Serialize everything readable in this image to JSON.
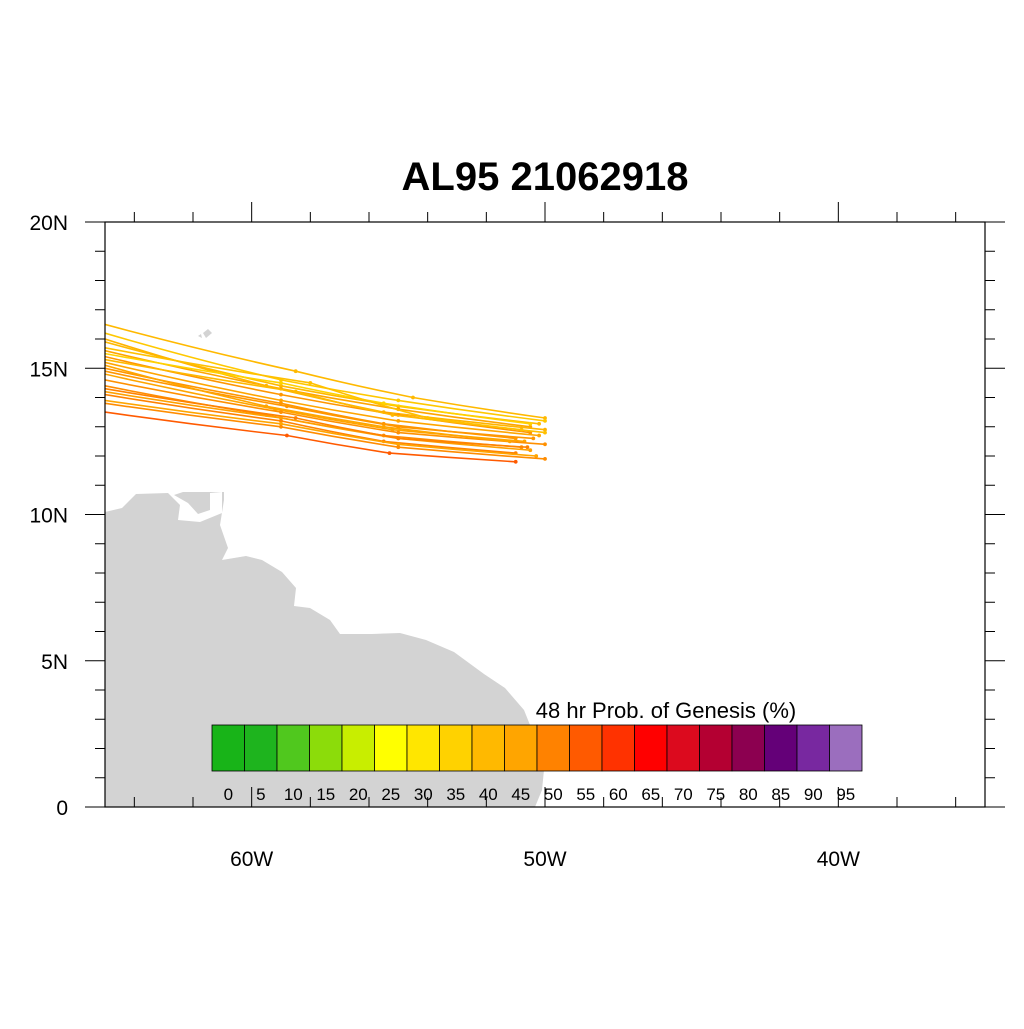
{
  "title": "AL95 21062918",
  "chart_data": {
    "type": "map-tracks",
    "title": "AL95 21062918",
    "lon_range": [
      -65,
      -35
    ],
    "lat_range": [
      0,
      20
    ],
    "x_ticks": [
      {
        "value": -60,
        "label": "60W"
      },
      {
        "value": -50,
        "label": "50W"
      },
      {
        "value": -40,
        "label": "40W"
      }
    ],
    "y_ticks": [
      {
        "value": 0,
        "label": "0"
      },
      {
        "value": 5,
        "label": "5N"
      },
      {
        "value": 10,
        "label": "10N"
      },
      {
        "value": 15,
        "label": "15N"
      },
      {
        "value": 20,
        "label": "20N"
      }
    ],
    "land_color": "#d3d3d3",
    "colorbar": {
      "title": "48 hr Prob. of Genesis (%)",
      "bins": [
        {
          "label": "0",
          "color": "#18b418"
        },
        {
          "label": "5",
          "color": "#1eb41e"
        },
        {
          "label": "10",
          "color": "#50c81e"
        },
        {
          "label": "15",
          "color": "#8cdc0a"
        },
        {
          "label": "20",
          "color": "#c8ee00"
        },
        {
          "label": "25",
          "color": "#ffff00"
        },
        {
          "label": "30",
          "color": "#ffe600"
        },
        {
          "label": "35",
          "color": "#ffd200"
        },
        {
          "label": "40",
          "color": "#ffb900"
        },
        {
          "label": "45",
          "color": "#ffa500"
        },
        {
          "label": "50",
          "color": "#ff8200"
        },
        {
          "label": "55",
          "color": "#ff5a00"
        },
        {
          "label": "60",
          "color": "#ff3200"
        },
        {
          "label": "65",
          "color": "#ff0000"
        },
        {
          "label": "70",
          "color": "#dc0a1e"
        },
        {
          "label": "75",
          "color": "#b40032"
        },
        {
          "label": "80",
          "color": "#8c0050"
        },
        {
          "label": "85",
          "color": "#640078"
        },
        {
          "label": "90",
          "color": "#7828a0"
        },
        {
          "label": "95",
          "color": "#9b6ebe"
        }
      ]
    },
    "tracks": [
      {
        "color": "#ffb900",
        "points": [
          [
            -50.0,
            13.3
          ],
          [
            -54.5,
            14.0
          ],
          [
            -58.5,
            14.9
          ],
          [
            -65.0,
            16.5
          ]
        ]
      },
      {
        "color": "#ffc800",
        "points": [
          [
            -50.0,
            13.2
          ],
          [
            -55.0,
            13.9
          ],
          [
            -59.0,
            14.6
          ],
          [
            -65.0,
            16.2
          ]
        ]
      },
      {
        "color": "#ffb900",
        "points": [
          [
            -50.2,
            13.1
          ],
          [
            -55.0,
            13.7
          ],
          [
            -59.0,
            14.4
          ],
          [
            -65.0,
            15.9
          ]
        ]
      },
      {
        "color": "#ffa500",
        "points": [
          [
            -50.5,
            13.0
          ],
          [
            -55.0,
            13.6
          ],
          [
            -59.0,
            14.3
          ],
          [
            -65.0,
            15.6
          ]
        ]
      },
      {
        "color": "#ffb400",
        "points": [
          [
            -50.0,
            12.9
          ],
          [
            -55.5,
            13.5
          ],
          [
            -59.5,
            14.4
          ],
          [
            -65.0,
            16.0
          ]
        ]
      },
      {
        "color": "#ff9600",
        "points": [
          [
            -50.5,
            12.8
          ],
          [
            -55.0,
            13.4
          ],
          [
            -59.0,
            14.1
          ],
          [
            -65.0,
            15.4
          ]
        ]
      },
      {
        "color": "#ffa500",
        "points": [
          [
            -50.2,
            12.7
          ],
          [
            -55.0,
            13.2
          ],
          [
            -59.0,
            13.9
          ],
          [
            -65.0,
            15.2
          ]
        ]
      },
      {
        "color": "#ff9600",
        "points": [
          [
            -51.0,
            12.6
          ],
          [
            -55.5,
            13.1
          ],
          [
            -59.0,
            13.8
          ],
          [
            -65.0,
            15.0
          ]
        ]
      },
      {
        "color": "#ffa500",
        "points": [
          [
            -50.7,
            12.5
          ],
          [
            -55.2,
            12.9
          ],
          [
            -59.2,
            13.6
          ],
          [
            -65.0,
            14.8
          ]
        ]
      },
      {
        "color": "#ff9000",
        "points": [
          [
            -50.0,
            12.4
          ],
          [
            -55.0,
            12.8
          ],
          [
            -59.0,
            13.5
          ],
          [
            -65.0,
            14.6
          ]
        ]
      },
      {
        "color": "#ff8c00",
        "points": [
          [
            -50.8,
            12.3
          ],
          [
            -55.5,
            12.7
          ],
          [
            -59.5,
            13.4
          ],
          [
            -65.0,
            14.4
          ]
        ]
      },
      {
        "color": "#ffa000",
        "points": [
          [
            -50.5,
            12.2
          ],
          [
            -55.0,
            12.6
          ],
          [
            -59.0,
            13.3
          ],
          [
            -65.0,
            14.2
          ]
        ]
      },
      {
        "color": "#ff8200",
        "points": [
          [
            -51.0,
            12.1
          ],
          [
            -55.5,
            12.5
          ],
          [
            -59.0,
            13.2
          ],
          [
            -65.0,
            14.1
          ]
        ]
      },
      {
        "color": "#ffa500",
        "points": [
          [
            -50.3,
            12.0
          ],
          [
            -55.0,
            12.4
          ],
          [
            -59.0,
            13.1
          ],
          [
            -65.0,
            13.9
          ]
        ]
      },
      {
        "color": "#ff8c00",
        "points": [
          [
            -50.0,
            11.9
          ],
          [
            -55.0,
            12.3
          ],
          [
            -59.0,
            13.0
          ],
          [
            -65.0,
            13.8
          ]
        ]
      },
      {
        "color": "#ff5a00",
        "points": [
          [
            -51.0,
            11.8
          ],
          [
            -55.3,
            12.1
          ],
          [
            -58.8,
            12.7
          ],
          [
            -65.0,
            13.5
          ]
        ]
      },
      {
        "color": "#ffd200",
        "points": [
          [
            -50.5,
            13.1
          ],
          [
            -55.5,
            13.8
          ],
          [
            -59.0,
            14.5
          ],
          [
            -65.0,
            15.5
          ]
        ]
      },
      {
        "color": "#ffb900",
        "points": [
          [
            -50.8,
            12.9
          ],
          [
            -55.2,
            13.4
          ],
          [
            -58.5,
            14.2
          ],
          [
            -65.0,
            15.3
          ]
        ]
      },
      {
        "color": "#ff9600",
        "points": [
          [
            -50.4,
            12.6
          ],
          [
            -55.0,
            13.0
          ],
          [
            -58.8,
            13.7
          ],
          [
            -65.0,
            14.9
          ]
        ]
      },
      {
        "color": "#ffa500",
        "points": [
          [
            -51.2,
            12.5
          ],
          [
            -55.5,
            13.0
          ],
          [
            -59.5,
            13.7
          ],
          [
            -65.0,
            15.1
          ]
        ]
      },
      {
        "color": "#ff8200",
        "points": [
          [
            -50.6,
            12.3
          ],
          [
            -55.0,
            12.6
          ],
          [
            -58.5,
            13.3
          ],
          [
            -65.0,
            14.3
          ]
        ]
      },
      {
        "color": "#ffc000",
        "points": [
          [
            -50.0,
            12.8
          ],
          [
            -54.0,
            13.3
          ],
          [
            -58.0,
            14.5
          ],
          [
            -65.0,
            15.7
          ]
        ]
      }
    ]
  }
}
